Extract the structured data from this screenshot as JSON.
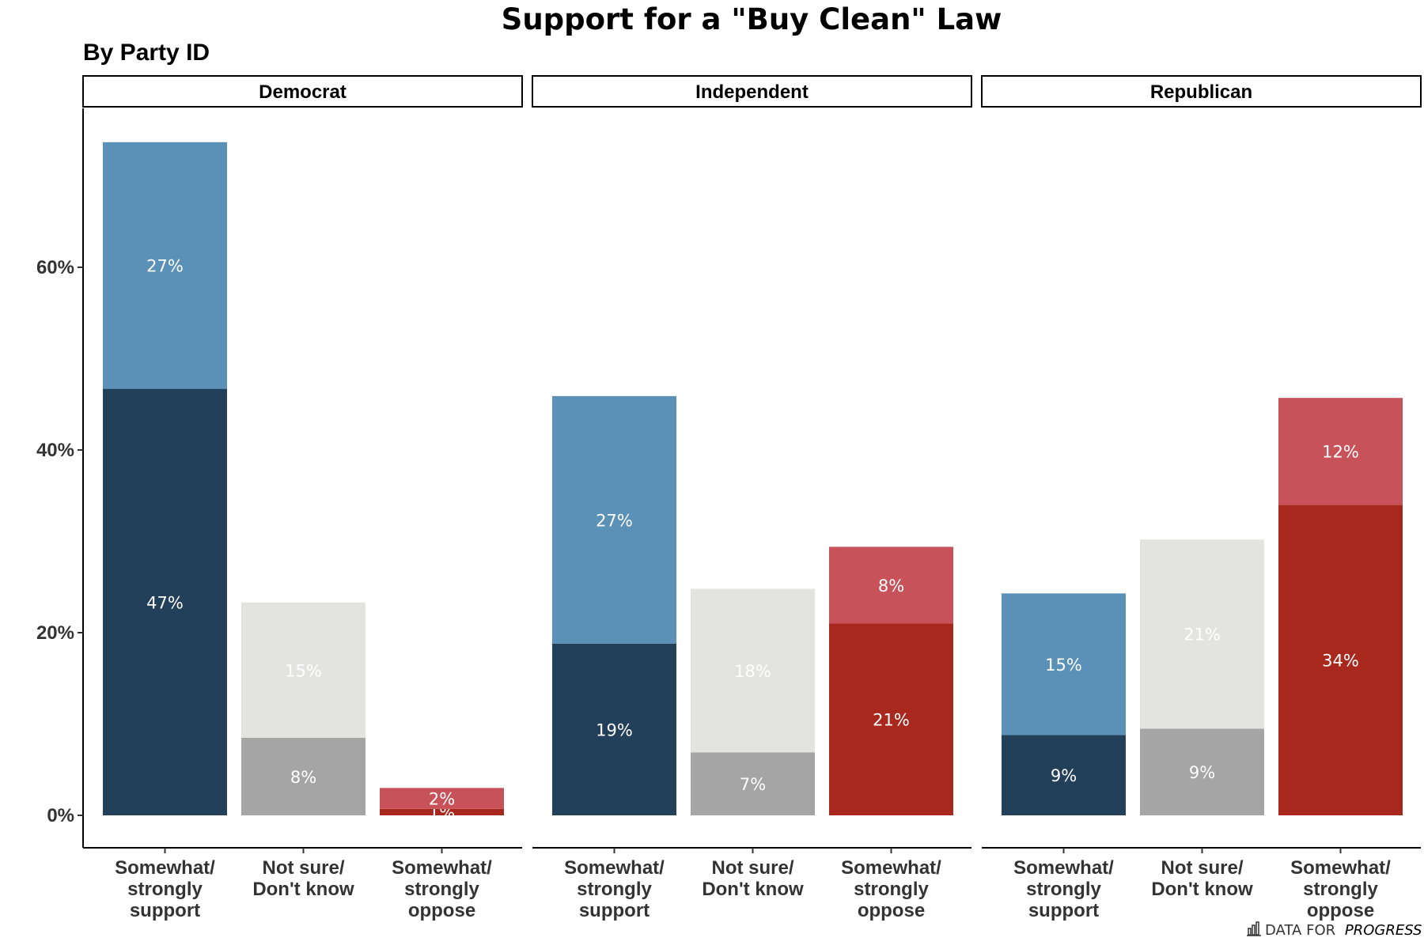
{
  "title": "Support for a \"Buy Clean\" Law",
  "subtitle": "By Party ID",
  "logo": {
    "prefix": "DATA FOR",
    "emphasis": "PROGRESS",
    "icon": "bar-chart-icon"
  },
  "chart_data": {
    "type": "bar",
    "stacked": true,
    "facets": [
      "Democrat",
      "Independent",
      "Republican"
    ],
    "categories": [
      [
        "Somewhat/",
        "strongly",
        "support"
      ],
      [
        "Not sure/",
        "Don't know"
      ],
      [
        "Somewhat/",
        "strongly",
        "oppose"
      ]
    ],
    "ylim": [
      0,
      77
    ],
    "yticks": [
      0,
      20,
      40,
      60
    ],
    "ytick_labels": [
      "0%",
      "20%",
      "40%",
      "60%"
    ],
    "grid": false,
    "panels": [
      {
        "facet": "Democrat",
        "bars": [
          {
            "segments": [
              {
                "value": 46.7,
                "label": "47%",
                "color": "#23405a"
              },
              {
                "value": 27.0,
                "label": "27%",
                "color": "#5b91b7"
              }
            ]
          },
          {
            "segments": [
              {
                "value": 8.5,
                "label": "8%",
                "color": "#a5a5a5"
              },
              {
                "value": 14.8,
                "label": "15%",
                "color": "#e3e3df"
              }
            ]
          },
          {
            "segments": [
              {
                "value": 0.7,
                "label": "1%",
                "color": "#a8281e"
              },
              {
                "value": 2.3,
                "label": "2%",
                "color": "#c8525a"
              }
            ]
          }
        ]
      },
      {
        "facet": "Independent",
        "bars": [
          {
            "segments": [
              {
                "value": 18.8,
                "label": "19%",
                "color": "#23405a"
              },
              {
                "value": 27.1,
                "label": "27%",
                "color": "#5b91b7"
              }
            ]
          },
          {
            "segments": [
              {
                "value": 6.9,
                "label": "7%",
                "color": "#a5a5a5"
              },
              {
                "value": 17.9,
                "label": "18%",
                "color": "#e3e3df"
              }
            ]
          },
          {
            "segments": [
              {
                "value": 21.0,
                "label": "21%",
                "color": "#a8281e"
              },
              {
                "value": 8.4,
                "label": "8%",
                "color": "#c8525a"
              }
            ]
          }
        ]
      },
      {
        "facet": "Republican",
        "bars": [
          {
            "segments": [
              {
                "value": 8.8,
                "label": "9%",
                "color": "#23405a"
              },
              {
                "value": 15.5,
                "label": "15%",
                "color": "#5b91b7"
              }
            ]
          },
          {
            "segments": [
              {
                "value": 9.5,
                "label": "9%",
                "color": "#a5a5a5"
              },
              {
                "value": 20.7,
                "label": "21%",
                "color": "#e3e3df"
              }
            ]
          },
          {
            "segments": [
              {
                "value": 34.0,
                "label": "34%",
                "color": "#a8281e"
              },
              {
                "value": 11.7,
                "label": "12%",
                "color": "#c8525a"
              }
            ]
          }
        ]
      }
    ]
  }
}
